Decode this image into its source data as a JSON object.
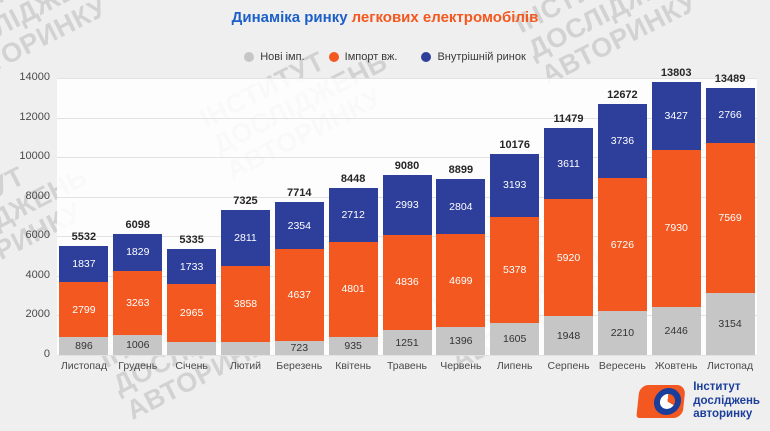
{
  "title": {
    "part1": "Динаміка ринку",
    "part2": "легкових електромобілів"
  },
  "watermark": {
    "lines": [
      "ІНСТИТУТ",
      "ДОСЛІДЖЕНЬ",
      "АВТОРИНКУ"
    ]
  },
  "footer_logo": {
    "lines": [
      "Інститут",
      "досліджень",
      "авторинку"
    ]
  },
  "colors": {
    "new_imported": "#c6c6c6",
    "used_import": "#f2581f",
    "domestic": "#2e3f9b",
    "title_blue": "#1d5fc9",
    "title_orange": "#f2581f",
    "logo_blue": "#1b3e9b",
    "background": "#efefef"
  },
  "chart_data": {
    "type": "bar",
    "stacked": true,
    "title": "Динаміка ринку легкових електромобілів",
    "categories": [
      "Листопад",
      "Грудень",
      "Січень",
      "Лютий",
      "Березень",
      "Квітень",
      "Травень",
      "Червень",
      "Липень",
      "Серпень",
      "Вересень",
      "Жовтень",
      "Листопад"
    ],
    "series": [
      {
        "name": "Нові імп.",
        "color": "#c6c6c6",
        "label_color": "#333333",
        "values": [
          896,
          1006,
          637,
          656,
          723,
          935,
          1251,
          1396,
          1605,
          1948,
          2210,
          2446,
          3154
        ],
        "labels": [
          "896",
          "1006",
          "",
          "",
          "723",
          "935",
          "1251",
          "1396",
          "1605",
          "1948",
          "2210",
          "2446",
          "3154"
        ]
      },
      {
        "name": "Імпорт вж.",
        "color": "#f2581f",
        "label_color": "#ffffff",
        "values": [
          2799,
          3263,
          2965,
          3858,
          4637,
          4801,
          4836,
          4699,
          5378,
          5920,
          6726,
          7930,
          7569
        ],
        "labels": [
          "2799",
          "3263",
          "2965",
          "3858",
          "4637",
          "4801",
          "4836",
          "4699",
          "5378",
          "5920",
          "6726",
          "7930",
          "7569"
        ]
      },
      {
        "name": "Внутрішній ринок",
        "color": "#2e3f9b",
        "label_color": "#ffffff",
        "values": [
          1837,
          1829,
          1733,
          2811,
          2354,
          2712,
          2993,
          2804,
          3193,
          3611,
          3736,
          3427,
          2766
        ],
        "labels": [
          "1837",
          "1829",
          "1733",
          "2811",
          "2354",
          "2712",
          "2993",
          "2804",
          "3193",
          "3611",
          "3736",
          "3427",
          "2766"
        ]
      }
    ],
    "totals": [
      5532,
      6098,
      5335,
      7325,
      7714,
      8448,
      9080,
      8899,
      10176,
      11479,
      12672,
      13803,
      13489
    ],
    "ylim": [
      0,
      14000
    ],
    "yticks": [
      0,
      2000,
      4000,
      6000,
      8000,
      10000,
      12000,
      14000
    ],
    "grid": true,
    "legend_position": "top"
  }
}
